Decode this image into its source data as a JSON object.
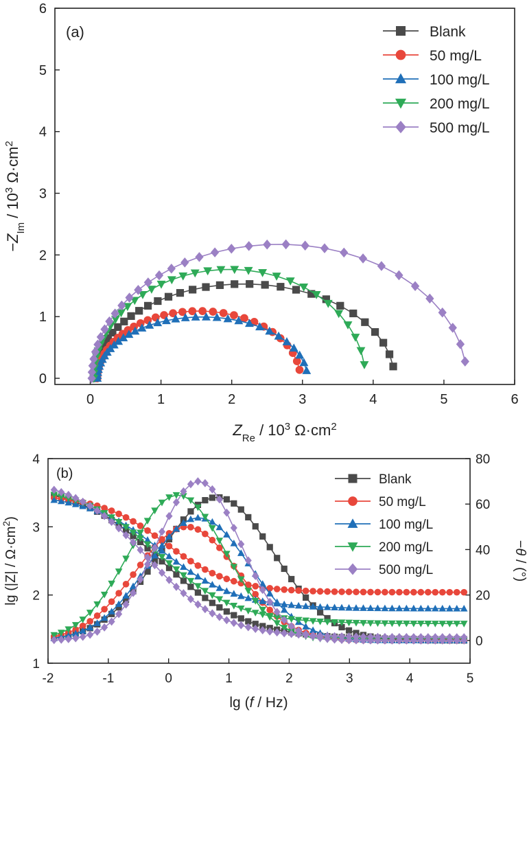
{
  "chart_data": [
    {
      "type": "scatter",
      "panel_label": "(a)",
      "xlabel": {
        "sym": "Z",
        "sub": "Re",
        "unit": " / 10",
        "sup": "3",
        "rest": " Ω·cm",
        "sup2": "2"
      },
      "ylabel": {
        "sym": "−Z",
        "sub": "Im",
        "unit": " / 10",
        "sup": "3",
        "rest": " Ω·cm",
        "sup2": "2"
      },
      "xlim": [
        -0.5,
        6
      ],
      "ylim": [
        -0.1,
        6
      ],
      "xticks": [
        0,
        1,
        2,
        3,
        4,
        5,
        6
      ],
      "yticks": [
        0,
        1,
        2,
        3,
        4,
        5,
        6
      ],
      "legend_position": "top-right",
      "series": [
        {
          "name": "Blank",
          "color": "#4a4a4a",
          "marker": "square",
          "R0": 0.05,
          "Rct": 4.25,
          "dep": 0.72
        },
        {
          "name": "50 mg/L",
          "color": "#e8473b",
          "marker": "circle",
          "R0": 0.1,
          "Rct": 2.87,
          "dep": 0.76
        },
        {
          "name": "100 mg/L",
          "color": "#1f6fb8",
          "marker": "triangle-up",
          "R0": 0.1,
          "Rct": 2.97,
          "dep": 0.67
        },
        {
          "name": "200 mg/L",
          "color": "#2eaa57",
          "marker": "triangle-down",
          "R0": 0.05,
          "Rct": 3.84,
          "dep": 0.92
        },
        {
          "name": "500 mg/L",
          "color": "#9b80c4",
          "marker": "diamond",
          "R0": 0.02,
          "Rct": 5.3,
          "dep": 0.82
        }
      ]
    },
    {
      "type": "scatter",
      "panel_label": "(b)",
      "xlabel": {
        "pre": "lg (",
        "sym": "f",
        "post": " / Hz)"
      },
      "ylabel_left": {
        "pre": "lg (|Z| / Ω·cm",
        "sup": "2",
        "post": ")"
      },
      "ylabel_right": {
        "pre": "−",
        "sym": "θ",
        "post": " / (°)"
      },
      "xlim": [
        -2,
        5
      ],
      "ylim_left": [
        1,
        4
      ],
      "ylim_right": [
        -10,
        80
      ],
      "xticks": [
        -2,
        -1,
        0,
        1,
        2,
        3,
        4,
        5
      ],
      "yticks_left": [
        1,
        2,
        3,
        4
      ],
      "yticks_right": [
        0,
        20,
        40,
        60,
        80
      ],
      "legend_position": "top-right",
      "series": [
        {
          "name": "Blank",
          "color": "#4a4a4a",
          "marker": "square",
          "logR0": 1.35,
          "logRt": 3.62,
          "fcMod": -0.1,
          "w": 0.7,
          "phaseMax": 63,
          "phasePeak": 0.8,
          "phaseSig": 0.95
        },
        {
          "name": "50 mg/L",
          "color": "#e8473b",
          "marker": "circle",
          "logR0": 2.04,
          "logRt": 3.47,
          "fcMod": -0.05,
          "w": 0.55,
          "phaseMax": 50,
          "phasePeak": 0.3,
          "phaseSig": 0.85
        },
        {
          "name": "100 mg/L",
          "color": "#1f6fb8",
          "marker": "triangle-up",
          "logR0": 1.8,
          "logRt": 3.48,
          "fcMod": -0.1,
          "w": 0.62,
          "phaseMax": 54,
          "phasePeak": 0.5,
          "phaseSig": 0.85
        },
        {
          "name": "200 mg/L",
          "color": "#2eaa57",
          "marker": "triangle-down",
          "logR0": 1.58,
          "logRt": 3.6,
          "fcMod": -0.15,
          "w": 0.65,
          "phaseMax": 64,
          "phasePeak": 0.15,
          "phaseSig": 0.8
        },
        {
          "name": "500 mg/L",
          "color": "#9b80c4",
          "marker": "diamond",
          "logR0": 1.38,
          "logRt": 3.72,
          "fcMod": -0.35,
          "w": 0.62,
          "phaseMax": 70,
          "phasePeak": 0.5,
          "phaseSig": 0.7
        }
      ]
    }
  ]
}
